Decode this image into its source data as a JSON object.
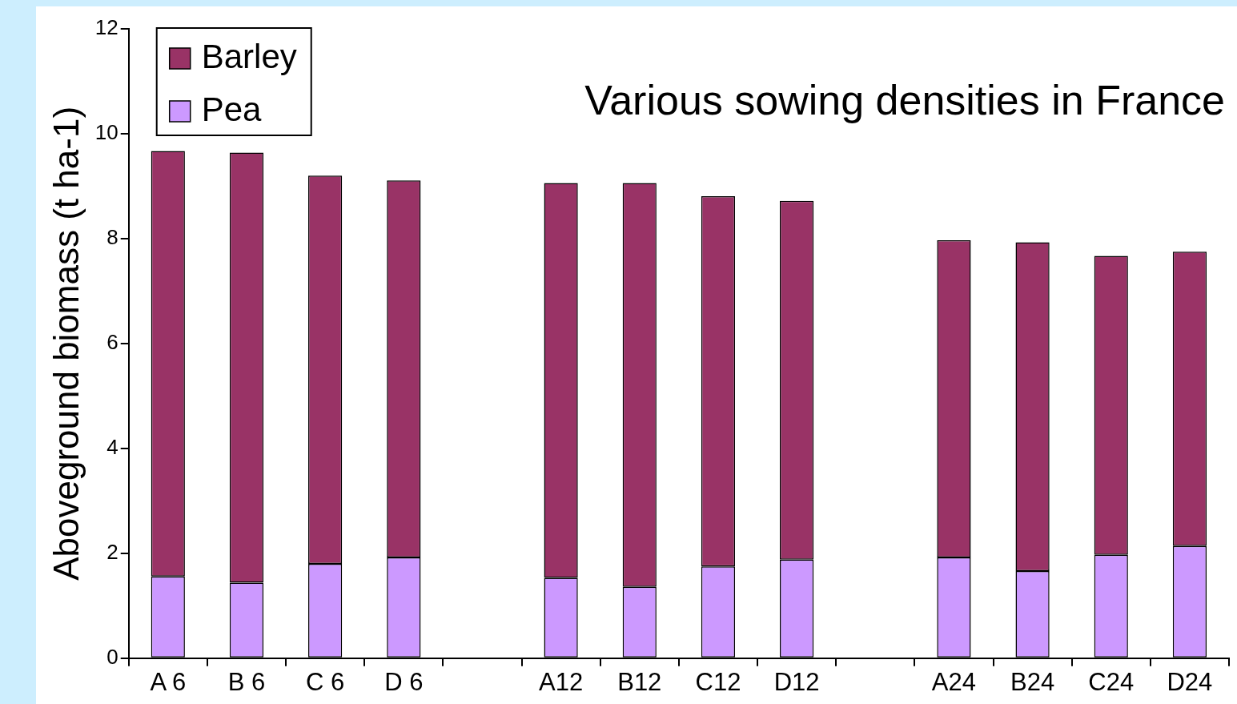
{
  "chart_data": {
    "type": "bar",
    "stacked": true,
    "title": "Various sowing densities in France",
    "ylabel": "Aboveground biomass (t ha-1)",
    "categories": [
      "A 6",
      "B 6",
      "C 6",
      "D 6",
      null,
      "A12",
      "B12",
      "C12",
      "D12",
      null,
      "A24",
      "B24",
      "C24",
      "D24"
    ],
    "series": [
      {
        "name": "Pea",
        "color": "#cc99ff",
        "values": [
          1.56,
          1.44,
          1.8,
          1.92,
          null,
          1.53,
          1.36,
          1.75,
          1.88,
          null,
          1.92,
          1.66,
          1.97,
          2.14
        ]
      },
      {
        "name": "Barley",
        "color": "#993366",
        "values": [
          8.11,
          8.2,
          7.4,
          7.19,
          null,
          7.53,
          7.7,
          7.06,
          6.84,
          null,
          6.05,
          6.27,
          5.7,
          5.61
        ]
      }
    ],
    "ylim": [
      0,
      12
    ],
    "yticks": [
      0,
      2,
      4,
      6,
      8,
      10,
      12
    ],
    "grid": false,
    "legend": "top left"
  }
}
